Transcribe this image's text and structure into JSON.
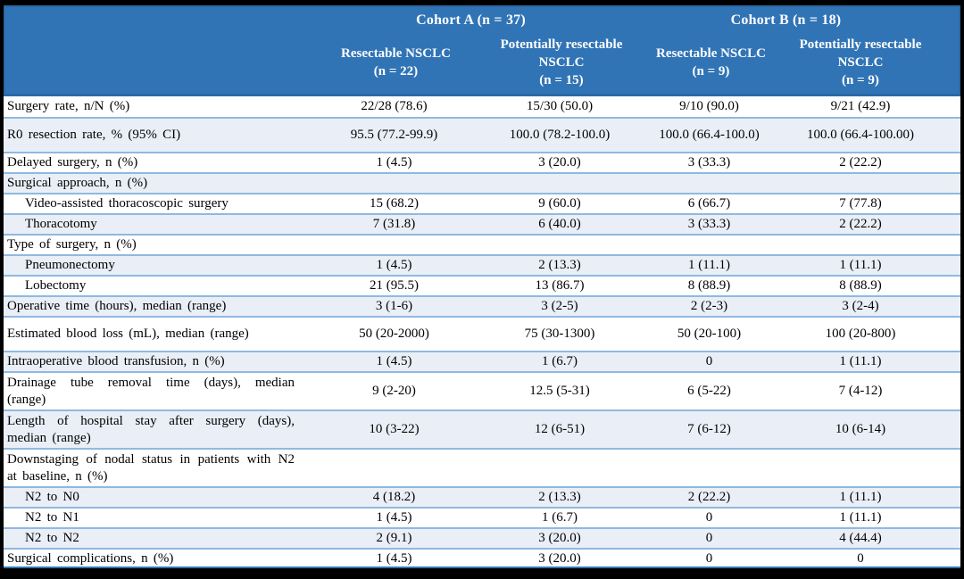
{
  "colors": {
    "header_bg": "#3174B6",
    "header_border": "#2A69A5",
    "row_alt_bg": "#EAEFF7",
    "row_border": "#90B9E0",
    "frame": "#000000",
    "header_text": "#FFFFFF",
    "body_text": "#000000"
  },
  "table": {
    "header": {
      "cohorts": [
        {
          "label": "Cohort A (n = 37)"
        },
        {
          "label": "Cohort B (n = 18)"
        }
      ],
      "columns": [
        {
          "name": "Resectable NSCLC",
          "n": "(n = 22)"
        },
        {
          "name": "Potentially resectable NSCLC",
          "n": "(n = 15)"
        },
        {
          "name": "Resectable NSCLC",
          "n": "(n = 9)"
        },
        {
          "name": "Potentially resectable NSCLC",
          "n": "(n = 9)"
        }
      ]
    },
    "rows": [
      {
        "label": "Surgery rate, n/N (%)",
        "indent": false,
        "size": "normal",
        "values": [
          "22/28 (78.6)",
          "15/30 (50.0)",
          "9/10 (90.0)",
          "9/21 (42.9)"
        ]
      },
      {
        "label": "R0 resection rate, % (95% CI)",
        "indent": false,
        "size": "tall",
        "values": [
          "95.5 (77.2-99.9)",
          "100.0 (78.2-100.0)",
          "100.0 (66.4-100.0)",
          "100.0 (66.4-100.00)"
        ]
      },
      {
        "label": "Delayed surgery, n (%)",
        "indent": false,
        "size": "normal",
        "values": [
          "1 (4.5)",
          "3 (20.0)",
          "3 (33.3)",
          "2 (22.2)"
        ]
      },
      {
        "label": "Surgical approach, n (%)",
        "indent": false,
        "size": "normal",
        "values": [
          "",
          "",
          "",
          ""
        ]
      },
      {
        "label": "Video-assisted thoracoscopic surgery",
        "indent": true,
        "size": "normal",
        "values": [
          "15 (68.2)",
          "9 (60.0)",
          "6 (66.7)",
          "7 (77.8)"
        ]
      },
      {
        "label": "Thoracotomy",
        "indent": true,
        "size": "normal",
        "values": [
          "7 (31.8)",
          "6 (40.0)",
          "3 (33.3)",
          "2 (22.2)"
        ]
      },
      {
        "label": "Type of surgery, n (%)",
        "indent": false,
        "size": "normal",
        "values": [
          "",
          "",
          "",
          ""
        ]
      },
      {
        "label": "Pneumonectomy",
        "indent": true,
        "size": "normal",
        "values": [
          "1 (4.5)",
          "2 (13.3)",
          "1 (11.1)",
          "1 (11.1)"
        ]
      },
      {
        "label": "Lobectomy",
        "indent": true,
        "size": "normal",
        "values": [
          "21 (95.5)",
          "13 (86.7)",
          "8 (88.9)",
          "8 (88.9)"
        ]
      },
      {
        "label": "Operative time (hours), median (range)",
        "indent": false,
        "size": "normal",
        "values": [
          "3 (1-6)",
          "3 (2-5)",
          "2 (2-3)",
          "3 (2-4)"
        ]
      },
      {
        "label": "Estimated blood loss (mL), median (range)",
        "indent": false,
        "size": "tall",
        "values": [
          "50 (20-2000)",
          "75 (30-1300)",
          "50 (20-100)",
          "100 (20-800)"
        ]
      },
      {
        "label": "Intraoperative blood transfusion, n (%)",
        "indent": false,
        "size": "normal",
        "values": [
          "1 (4.5)",
          "1 (6.7)",
          "0",
          "1 (11.1)"
        ]
      },
      {
        "label": "Drainage tube removal time (days), median (range)",
        "indent": false,
        "size": "twoline",
        "values": [
          "9 (2-20)",
          "12.5 (5-31)",
          "6 (5-22)",
          "7 (4-12)"
        ]
      },
      {
        "label": "Length of hospital stay after surgery (days), median (range)",
        "indent": false,
        "size": "twoline",
        "values": [
          "10 (3-22)",
          "12 (6-51)",
          "7 (6-12)",
          "10 (6-14)"
        ]
      },
      {
        "label": "Downstaging of nodal status in patients with N2 at baseline, n (%)",
        "indent": false,
        "size": "twoline",
        "values": [
          "",
          "",
          "",
          ""
        ]
      },
      {
        "label": "N2 to N0",
        "indent": true,
        "size": "normal",
        "values": [
          "4 (18.2)",
          "2 (13.3)",
          "2 (22.2)",
          "1 (11.1)"
        ]
      },
      {
        "label": "N2 to N1",
        "indent": true,
        "size": "normal",
        "values": [
          "1 (4.5)",
          "1 (6.7)",
          "0",
          "1 (11.1)"
        ]
      },
      {
        "label": "N2 to N2",
        "indent": true,
        "size": "normal",
        "values": [
          "2 (9.1)",
          "3 (20.0)",
          "0",
          "4 (44.4)"
        ]
      },
      {
        "label": "Surgical complications, n (%)",
        "indent": false,
        "size": "normal",
        "values": [
          "1 (4.5)",
          "3 (20.0)",
          "0",
          "0"
        ]
      }
    ]
  }
}
